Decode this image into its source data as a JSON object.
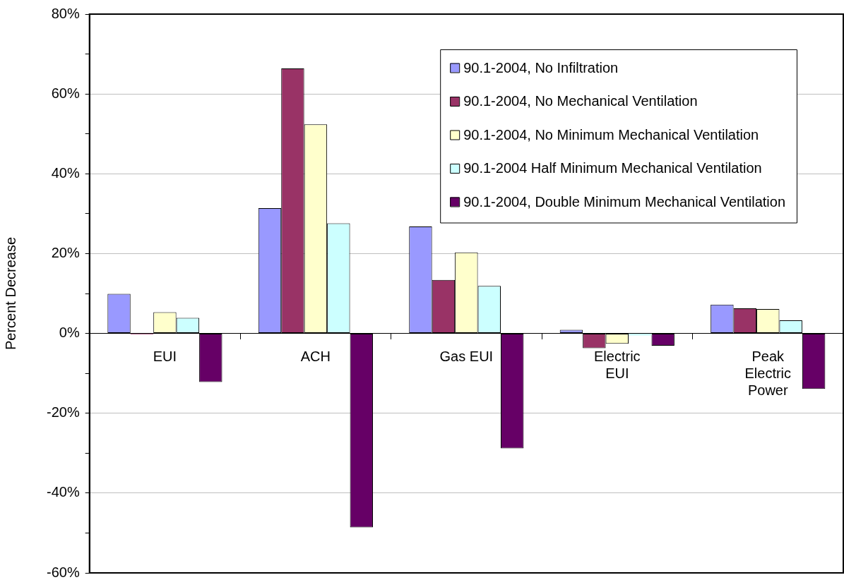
{
  "chart_data": {
    "type": "bar",
    "ylabel": "Percent Decrease",
    "categories": [
      "EUI",
      "ACH",
      "Gas EUI",
      "Electric EUI",
      "Peak Electric Power"
    ],
    "series": [
      {
        "name": "90.1-2004, No Infiltration",
        "color": "#9999ff",
        "values": [
          9.9,
          31.4,
          26.8,
          0.9,
          7.2
        ]
      },
      {
        "name": "90.1-2004, No Mechanical Ventilation",
        "color": "#993366",
        "values": [
          -0.2,
          66.4,
          13.4,
          -3.7,
          6.3
        ]
      },
      {
        "name": "90.1-2004, No Minimum Mechanical Ventilation",
        "color": "#ffffcc",
        "values": [
          5.3,
          52.4,
          20.3,
          -2.6,
          6.1
        ]
      },
      {
        "name": "90.1-2004 Half Minimum Mechanical Ventilation",
        "color": "#ccffff",
        "values": [
          3.9,
          27.6,
          11.9,
          -0.5,
          3.3
        ]
      },
      {
        "name": "90.1-2004, Double Minimum Mechanical Ventilation",
        "color": "#660066",
        "values": [
          -12.2,
          -48.6,
          -28.8,
          -3.1,
          -13.9
        ]
      }
    ],
    "ylim": [
      -60,
      80
    ],
    "yticks": [
      {
        "value": -60,
        "label": "-60%"
      },
      {
        "value": -50,
        "label": null
      },
      {
        "value": -40,
        "label": "-40%"
      },
      {
        "value": -30,
        "label": null
      },
      {
        "value": -20,
        "label": "-20%"
      },
      {
        "value": -10,
        "label": null
      },
      {
        "value": 0,
        "label": "0%"
      },
      {
        "value": 10,
        "label": null
      },
      {
        "value": 20,
        "label": "20%"
      },
      {
        "value": 30,
        "label": null
      },
      {
        "value": 40,
        "label": "40%"
      },
      {
        "value": 50,
        "label": null
      },
      {
        "value": 60,
        "label": "60%"
      },
      {
        "value": 70,
        "label": null
      },
      {
        "value": 80,
        "label": "80%"
      }
    ],
    "grid": "y",
    "legend": "top right"
  }
}
